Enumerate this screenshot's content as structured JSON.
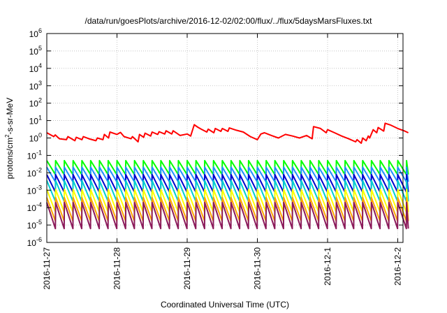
{
  "chart_data": {
    "type": "line",
    "title": "/data/run/goesPlots/archive/2016-12-02/02:00/flux/../flux/5daysMarsFluxes.txt",
    "xlabel": "Coordinated Universal Time (UTC)",
    "ylabel_parts": [
      "protons/cm",
      "2",
      "-s-sr-MeV"
    ],
    "x_ticks": [
      "2016-11-27",
      "2016-11-28",
      "2016-11-29",
      "2016-11-30",
      "2016-12-1",
      "2016-12-2"
    ],
    "y_ticks": [
      {
        "base": "10",
        "exp": "-6"
      },
      {
        "base": "10",
        "exp": "-5"
      },
      {
        "base": "10",
        "exp": "-4"
      },
      {
        "base": "10",
        "exp": "-3"
      },
      {
        "base": "10",
        "exp": "-2"
      },
      {
        "base": "10",
        "exp": "-1"
      },
      {
        "base": "10",
        "exp": "0"
      },
      {
        "base": "10",
        "exp": "1"
      },
      {
        "base": "10",
        "exp": "2"
      },
      {
        "base": "10",
        "exp": "3"
      },
      {
        "base": "10",
        "exp": "4"
      },
      {
        "base": "10",
        "exp": "5"
      },
      {
        "base": "10",
        "exp": "6"
      }
    ],
    "x_range_days": [
      0,
      5.15
    ],
    "y_range_log10": [
      -6,
      6
    ],
    "y_scale": "log",
    "grid": true,
    "series": [
      {
        "color": "#ff0000",
        "x": [
          0.0,
          0.1,
          0.12,
          0.18,
          0.28,
          0.3,
          0.4,
          0.42,
          0.5,
          0.52,
          0.6,
          0.7,
          0.72,
          0.8,
          0.82,
          0.88,
          0.9,
          1.0,
          1.05,
          1.1,
          1.2,
          1.22,
          1.3,
          1.32,
          1.38,
          1.4,
          1.48,
          1.5,
          1.58,
          1.6,
          1.68,
          1.7,
          1.78,
          1.8,
          1.9,
          2.0,
          2.05,
          2.1,
          2.15,
          2.2,
          2.28,
          2.3,
          2.38,
          2.4,
          2.48,
          2.5,
          2.58,
          2.6,
          2.7,
          2.8,
          2.9,
          3.0,
          3.05,
          3.1,
          3.2,
          3.3,
          3.4,
          3.5,
          3.6,
          3.7,
          3.78,
          3.8,
          3.9,
          3.98,
          4.0,
          4.1,
          4.2,
          4.3,
          4.4,
          4.42,
          4.48,
          4.5,
          4.55,
          4.58,
          4.6,
          4.65,
          4.7,
          4.72,
          4.8,
          4.82,
          4.9,
          5.0,
          5.1,
          5.15
        ],
        "y": [
          2.0,
          1.2,
          1.5,
          0.9,
          0.8,
          1.2,
          0.7,
          1.1,
          0.8,
          1.2,
          0.9,
          0.7,
          1.0,
          0.8,
          1.6,
          1.0,
          2.2,
          1.6,
          2.1,
          1.2,
          0.9,
          1.2,
          0.6,
          1.6,
          1.1,
          1.9,
          1.3,
          2.2,
          1.6,
          2.3,
          1.7,
          2.6,
          1.7,
          2.6,
          1.4,
          1.7,
          1.3,
          5.8,
          4.2,
          3.2,
          2.2,
          3.2,
          2.0,
          3.5,
          2.4,
          3.5,
          2.4,
          3.8,
          2.8,
          2.2,
          1.2,
          0.8,
          1.7,
          2.0,
          1.4,
          1.0,
          1.6,
          1.3,
          1.0,
          1.4,
          0.9,
          4.5,
          3.5,
          2.0,
          3.0,
          2.0,
          1.3,
          0.9,
          0.6,
          0.8,
          0.5,
          1.0,
          0.7,
          1.3,
          1.0,
          3.0,
          2.0,
          4.0,
          2.5,
          7.0,
          5.5,
          3.5,
          2.5,
          2.0
        ]
      },
      {
        "color": "#00ff00",
        "base": 0.02,
        "amplitude": 0.8
      },
      {
        "color": "#1e90ff",
        "base": 0.008,
        "amplitude": 0.85
      },
      {
        "color": "#0000cd",
        "base": 0.0025,
        "amplitude": 1.0
      },
      {
        "color": "#00ced1",
        "base": 0.0009,
        "amplitude": 1.2
      },
      {
        "color": "#ffff00",
        "base": 0.00025,
        "amplitude": 1.3
      },
      {
        "color": "#ffa500",
        "base": 8e-05,
        "amplitude": 1.35
      },
      {
        "color": "#8b1a5a",
        "base": 3.5e-05,
        "amplitude": 1.5
      }
    ],
    "sawtooth_period_days": 0.125
  }
}
